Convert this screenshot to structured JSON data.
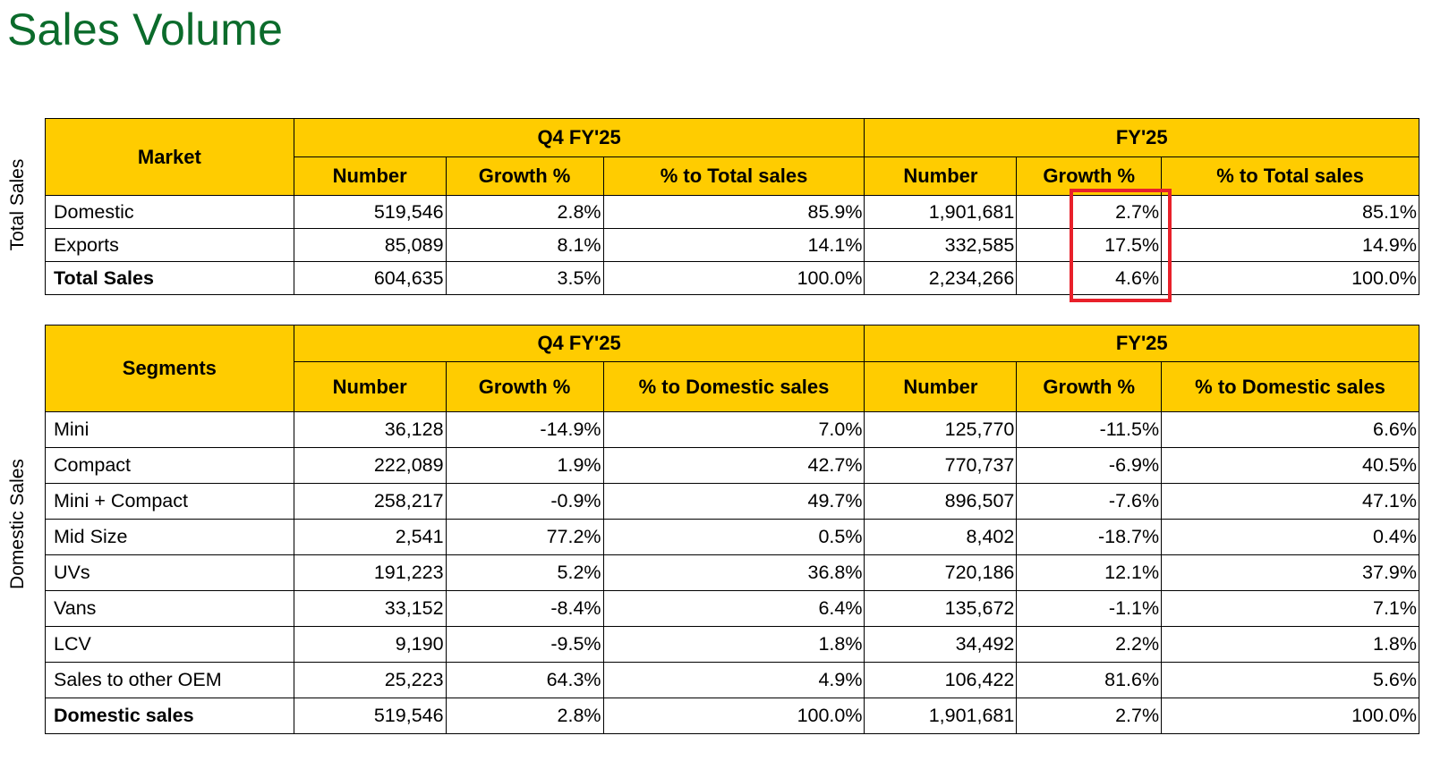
{
  "title": "Sales Volume",
  "highlight_color": "#e8202a",
  "header_color": "#ffcc00",
  "title_color": "#0b6b2b",
  "total_sales": {
    "side_label": "Total Sales",
    "first_col": "Market",
    "period_q4": "Q4 FY'25",
    "period_fy": "FY'25",
    "cols": [
      "Number",
      "Growth %",
      "% to Total sales",
      "Number",
      "Growth %",
      "% to Total sales"
    ],
    "rows": [
      {
        "label": "Domestic",
        "cells": [
          "519,546",
          "2.8%",
          "85.9%",
          "1,901,681",
          "2.7%",
          "85.1%"
        ]
      },
      {
        "label": "Exports",
        "cells": [
          "85,089",
          "8.1%",
          "14.1%",
          "332,585",
          "17.5%",
          "14.9%"
        ]
      },
      {
        "label": "Total Sales",
        "cells": [
          "604,635",
          "3.5%",
          "100.0%",
          "2,234,266",
          "4.6%",
          "100.0%"
        ]
      }
    ]
  },
  "domestic_sales": {
    "side_label": "Domestic Sales",
    "first_col": "Segments",
    "period_q4": "Q4 FY'25",
    "period_fy": "FY'25",
    "cols": [
      "Number",
      "Growth %",
      "% to Domestic sales",
      "Number",
      "Growth %",
      "% to Domestic sales"
    ],
    "rows": [
      {
        "label": "Mini",
        "cells": [
          "36,128",
          "-14.9%",
          "7.0%",
          "125,770",
          "-11.5%",
          "6.6%"
        ]
      },
      {
        "label": "Compact",
        "cells": [
          "222,089",
          "1.9%",
          "42.7%",
          "770,737",
          "-6.9%",
          "40.5%"
        ]
      },
      {
        "label": "Mini + Compact",
        "cells": [
          "258,217",
          "-0.9%",
          "49.7%",
          "896,507",
          "-7.6%",
          "47.1%"
        ]
      },
      {
        "label": "Mid Size",
        "cells": [
          "2,541",
          "77.2%",
          "0.5%",
          "8,402",
          "-18.7%",
          "0.4%"
        ]
      },
      {
        "label": "UVs",
        "cells": [
          "191,223",
          "5.2%",
          "36.8%",
          "720,186",
          "12.1%",
          "37.9%"
        ]
      },
      {
        "label": "Vans",
        "cells": [
          "33,152",
          "-8.4%",
          "6.4%",
          "135,672",
          "-1.1%",
          "7.1%"
        ]
      },
      {
        "label": "LCV",
        "cells": [
          "9,190",
          "-9.5%",
          "1.8%",
          "34,492",
          "2.2%",
          "1.8%"
        ]
      },
      {
        "label": "Sales to other OEM",
        "cells": [
          "25,223",
          "64.3%",
          "4.9%",
          "106,422",
          "81.6%",
          "5.6%"
        ]
      },
      {
        "label": "Domestic sales",
        "cells": [
          "519,546",
          "2.8%",
          "100.0%",
          "1,901,681",
          "2.7%",
          "100.0%"
        ]
      }
    ]
  }
}
